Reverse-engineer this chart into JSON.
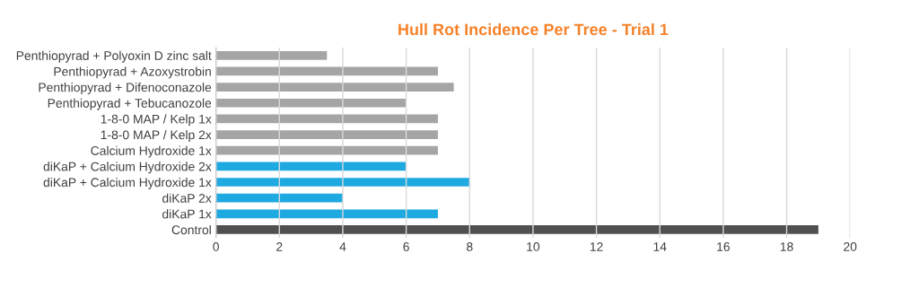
{
  "chart_data": {
    "type": "bar",
    "orientation": "horizontal",
    "title": "Hull Rot Incidence Per Tree - Trial 1",
    "categories": [
      "Penthiopyrad + Polyoxin D zinc salt",
      "Penthiopyrad + Azoxystrobin",
      "Penthiopyrad + Difenoconazole",
      "Penthiopyrad + Tebucanozole",
      "1-8-0 MAP / Kelp 1x",
      "1-8-0 MAP / Kelp 2x",
      "Calcium Hydroxide 1x",
      "diKaP + Calcium Hydroxide 2x",
      "diKaP + Calcium Hydroxide 1x",
      "diKaP 2x",
      "diKaP 1x",
      "Control"
    ],
    "values": [
      3.5,
      7,
      7.5,
      6,
      7,
      7,
      7,
      6,
      8,
      4,
      7,
      19
    ],
    "colors": [
      "#a5a5a5",
      "#a5a5a5",
      "#a5a5a5",
      "#a5a5a5",
      "#a5a5a5",
      "#a5a5a5",
      "#a5a5a5",
      "#1fa9e1",
      "#1fa9e1",
      "#1fa9e1",
      "#1fa9e1",
      "#505050"
    ],
    "xlim": [
      0,
      20
    ],
    "xticks": [
      0,
      2,
      4,
      6,
      8,
      10,
      12,
      14,
      16,
      18,
      20
    ],
    "grid": "x"
  }
}
